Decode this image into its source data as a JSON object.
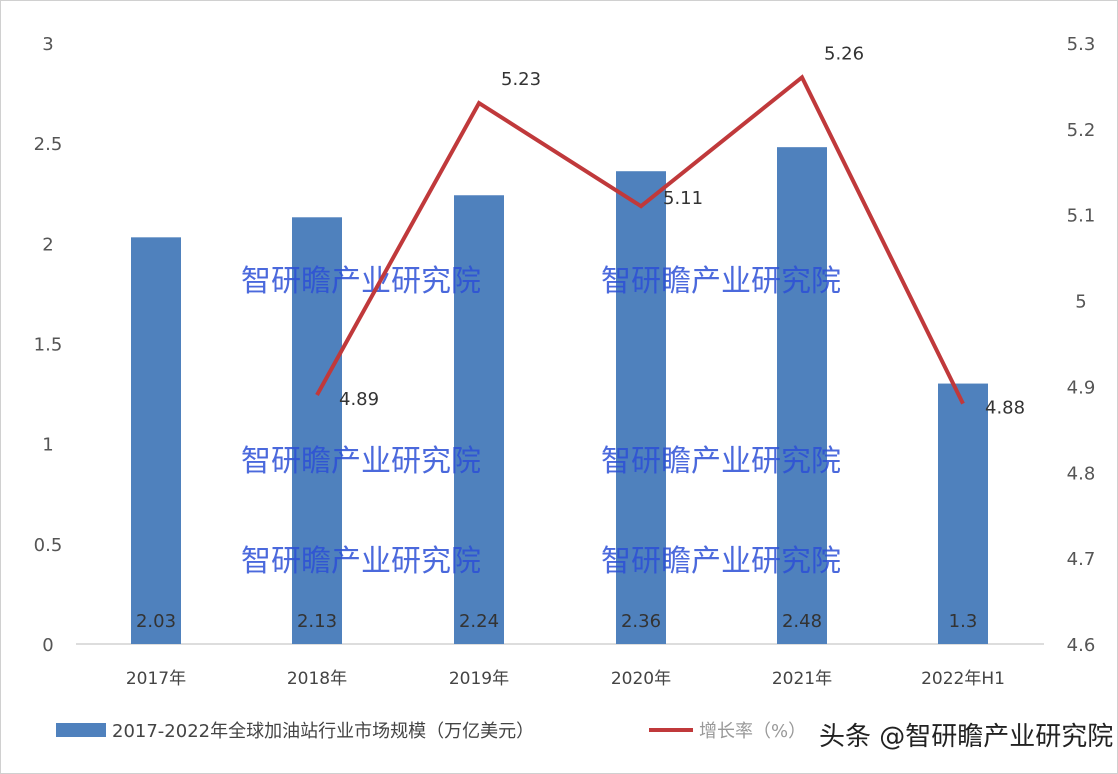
{
  "chart_data": {
    "type": "bar+line",
    "categories": [
      "2017年",
      "2018年",
      "2019年",
      "2020年",
      "2021年",
      "2022年H1"
    ],
    "series": [
      {
        "name": "2017-2022年全球加油站行业市场规模（万亿美元）",
        "type": "bar",
        "axis": "left",
        "color": "#4f81bd",
        "values": [
          2.03,
          2.13,
          2.24,
          2.36,
          2.48,
          1.3
        ],
        "labels": [
          "2.03",
          "2.13",
          "2.24",
          "2.36",
          "2.48",
          "1.3"
        ]
      },
      {
        "name": "增长率（%）",
        "type": "line",
        "axis": "right",
        "color": "#c0393b",
        "values": [
          null,
          4.89,
          5.23,
          5.11,
          5.26,
          4.88
        ],
        "labels": [
          "",
          "4.89",
          "5.23",
          "5.11",
          "5.26",
          "4.88"
        ]
      }
    ],
    "y_left": {
      "range": [
        0,
        3
      ],
      "ticks": [
        "0",
        "0.5",
        "1",
        "1.5",
        "2",
        "2.5",
        "3"
      ]
    },
    "y_right": {
      "range": [
        4.6,
        5.3
      ],
      "ticks": [
        "4.6",
        "4.7",
        "4.8",
        "4.9",
        "5",
        "5.1",
        "5.2",
        "5.3"
      ]
    },
    "grid": false,
    "legend": "bottom"
  },
  "watermark": "智研瞻产业研究院",
  "credit": "头条 @智研瞻产业研究院"
}
